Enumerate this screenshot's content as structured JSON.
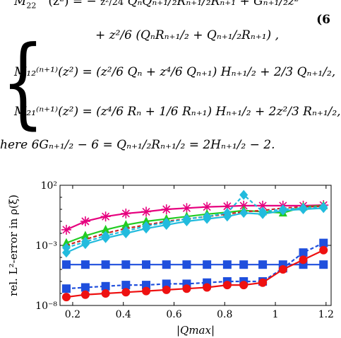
{
  "equations": {
    "line1_lhs": "M",
    "line1_sub": "22",
    "line1_rest": "(z²) = −",
    "line1_frac": "z²/24",
    "line1_terms": "QₙQₙ₊₁/₂Rₙ₊₁/₂Rₙ₊₁ + Gₙ₊₁/₂z²",
    "line2": "+ z²/6 (QₙRₙ₊₁/₂ + Qₙ₊₁/₂Rₙ₊₁) ,",
    "line3_lhs": "M₁₂⁽ⁿ⁺¹⁾(z²) =",
    "line3_rhs": "(z²/6 Qₙ + z⁴/6 Qₙ₊₁) Hₙ₊₁/₂ + 2/3 Qₙ₊₁/₂,",
    "line4_lhs": "M₂₁⁽ⁿ⁺¹⁾(z²) =",
    "line4_rhs": "(z⁴/6 Rₙ + 1/6 Rₙ₊₁) Hₙ₊₁/₂ + 2z²/3 Rₙ₊₁/₂,",
    "eq_number": "(6",
    "where_text": "here 6Gₙ₊₁/₂ − 6 = Qₙ₊₁/₂Rₙ₊₁/₂ = 2Hₙ₊₁/₂ − 2."
  },
  "chart_data": {
    "type": "line",
    "ylabel": "rel. L²-error in ρ(ξ)",
    "xlabel": "|Qmax|",
    "yscale": "log",
    "xlim": [
      0.15,
      1.22
    ],
    "ylim_exp": [
      -8,
      2
    ],
    "x_ticks": [
      0.2,
      0.4,
      0.6,
      0.8,
      1,
      1.2
    ],
    "x_tick_labels": [
      "0.2",
      "0.4",
      "0.6",
      "0.8",
      "1",
      "1.2"
    ],
    "y_tick_labels": [
      "10²",
      "10⁻³",
      "10⁻⁸"
    ],
    "y_tick_exps": [
      2,
      -3,
      -8
    ],
    "x": [
      0.175,
      0.25,
      0.33,
      0.41,
      0.49,
      0.57,
      0.65,
      0.73,
      0.81,
      0.875,
      0.95,
      1.03,
      1.11,
      1.19
    ],
    "series": [
      {
        "color": "#e6007e",
        "marker": "star",
        "dash": false,
        "log10": [
          -1.7,
          -1.0,
          -0.6,
          -0.35,
          -0.2,
          0.0,
          0.1,
          0.2,
          0.25,
          0.3,
          0.3,
          0.3,
          0.3,
          0.35
        ]
      },
      {
        "color": "#22cc22",
        "marker": "triangle",
        "dash": false,
        "log10": [
          -2.8,
          -2.2,
          -1.7,
          -1.3,
          -1.0,
          -0.8,
          -0.6,
          -0.4,
          -0.25,
          -0.1,
          -0.2,
          -0.3,
          0.2,
          0.3
        ]
      },
      {
        "color": "#cc2222",
        "marker": "none",
        "dash": true,
        "log10": [
          -3.0,
          -2.5,
          -2.0,
          -1.6,
          -1.3,
          -1.0,
          -0.8,
          -0.6,
          -0.4,
          -0.2,
          -0.1,
          0.1,
          0.2,
          0.25
        ]
      },
      {
        "color": "#22bbdd",
        "marker": "diamond",
        "dash": false,
        "log10": [
          -3.6,
          -2.9,
          -2.4,
          -2.0,
          -1.6,
          -1.3,
          -1.0,
          -0.8,
          -0.6,
          -0.3,
          -0.4,
          -0.1,
          0.0,
          0.1
        ]
      },
      {
        "color": "#22bbdd",
        "marker": "diamond",
        "dash": true,
        "log10": [
          -3.2,
          -2.7,
          -2.2,
          -1.8,
          -1.4,
          -1.1,
          -0.8,
          -0.6,
          -0.3,
          1.2,
          -0.2,
          0.0,
          0.1,
          0.2
        ]
      },
      {
        "color": "#1f4fdd",
        "marker": "square",
        "dash": false,
        "log10": [
          -4.6,
          -4.6,
          -4.6,
          -4.6,
          -4.6,
          -4.6,
          -4.6,
          -4.6,
          -4.6,
          -4.6,
          -4.6,
          -4.6,
          -4.6,
          -4.6
        ]
      },
      {
        "color": "#1f4fdd",
        "marker": "square",
        "dash": true,
        "log10": [
          -6.6,
          -6.5,
          -6.4,
          -6.3,
          -6.3,
          -6.2,
          -6.2,
          -6.1,
          -6.0,
          -6.0,
          -6.0,
          -4.9,
          -3.6,
          -2.8
        ]
      },
      {
        "color": "#ee1111",
        "marker": "circle",
        "dash": false,
        "log10": [
          -7.3,
          -7.1,
          -7.0,
          -6.9,
          -6.8,
          -6.7,
          -6.6,
          -6.5,
          -6.3,
          -6.3,
          -6.1,
          -5.0,
          -4.2,
          -3.4
        ]
      }
    ]
  }
}
